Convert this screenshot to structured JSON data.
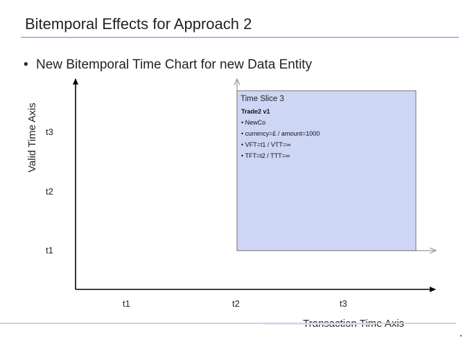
{
  "slide": {
    "title": "Bitemporal Effects for Approach 2",
    "bullet_marker": "•",
    "bullet": "New Bitemporal Time Chart for new Data Entity"
  },
  "axes": {
    "y_label": "Valid Time Axis",
    "x_label": "Transaction Time Axis",
    "y_ticks": [
      "t1",
      "t2",
      "t3"
    ],
    "x_ticks": [
      "t1",
      "t2",
      "t3"
    ]
  },
  "time_slice": {
    "title": "Time Slice 3",
    "entity": "Trade2 v1",
    "lines": [
      "• NewCo",
      "• currency=£ / amount=1000",
      "• VFT=t1 / VTT=∞",
      "• TFT=t2 / TTT=∞"
    ],
    "fill_color": "#cdd6f5",
    "border_color": "#888888"
  }
}
